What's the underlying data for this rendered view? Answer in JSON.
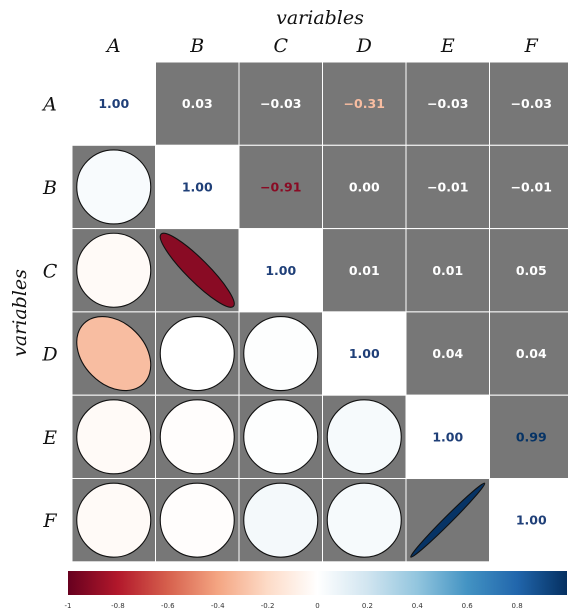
{
  "chart_data": {
    "type": "heatmap",
    "title": "",
    "xlabel": "variables",
    "ylabel": "variables",
    "variables": [
      "A",
      "B",
      "C",
      "D",
      "E",
      "F"
    ],
    "matrix": [
      [
        1.0,
        0.03,
        -0.03,
        -0.31,
        -0.03,
        -0.03
      ],
      [
        0.03,
        1.0,
        -0.91,
        0.0,
        -0.01,
        -0.01
      ],
      [
        -0.03,
        -0.91,
        1.0,
        0.01,
        0.01,
        0.05
      ],
      [
        -0.31,
        0.0,
        0.01,
        1.0,
        0.04,
        0.04
      ],
      [
        -0.03,
        -0.01,
        0.01,
        0.04,
        1.0,
        0.99
      ],
      [
        -0.03,
        -0.01,
        0.05,
        0.04,
        0.99,
        1.0
      ]
    ],
    "upper_triangle": "numbers",
    "lower_triangle": "ellipses",
    "diagonal": "numbers",
    "panel_background": "#777777",
    "colorbar": {
      "range": [
        -1,
        1
      ],
      "ticks": [
        "-1",
        "-0.8",
        "-0.6",
        "-0.4",
        "-0.2",
        "0",
        "0.2",
        "0.4",
        "0.6",
        "0.8"
      ],
      "tick_values": [
        -1,
        -0.8,
        -0.6,
        -0.4,
        -0.2,
        0,
        0.2,
        0.4,
        0.6,
        0.8
      ],
      "colors": [
        "#67001f",
        "#b2182b",
        "#d6604d",
        "#f4a582",
        "#fddbc7",
        "#ffffff",
        "#d1e5f0",
        "#92c5de",
        "#4393c3",
        "#2166ac",
        "#053061"
      ],
      "placement": "bottom"
    }
  }
}
